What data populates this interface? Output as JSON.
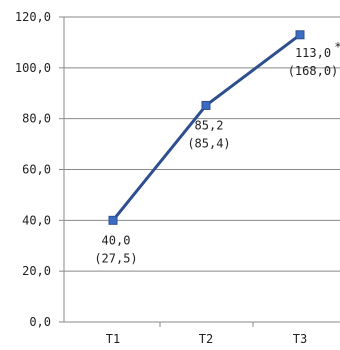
{
  "chart_data": {
    "type": "line",
    "categories": [
      "T1",
      "T2",
      "T3"
    ],
    "y_tick_labels": [
      "0,0",
      "20,0",
      "40,0",
      "60,0",
      "80,0",
      "100,0",
      "120,0"
    ],
    "ylim": [
      0,
      120
    ],
    "y_step": 20,
    "grid": true,
    "series": [
      {
        "values": [
          40.0,
          85.2,
          113.0
        ],
        "color": "#2e4f8f",
        "value_labels": [
          "40,0",
          "85,2",
          "113,0"
        ],
        "secondary_labels": [
          "(27,5)",
          "(85,4)",
          "(168,0)"
        ]
      }
    ],
    "annotations": [
      {
        "category": "T3",
        "text": "*"
      }
    ],
    "legend": "none"
  }
}
